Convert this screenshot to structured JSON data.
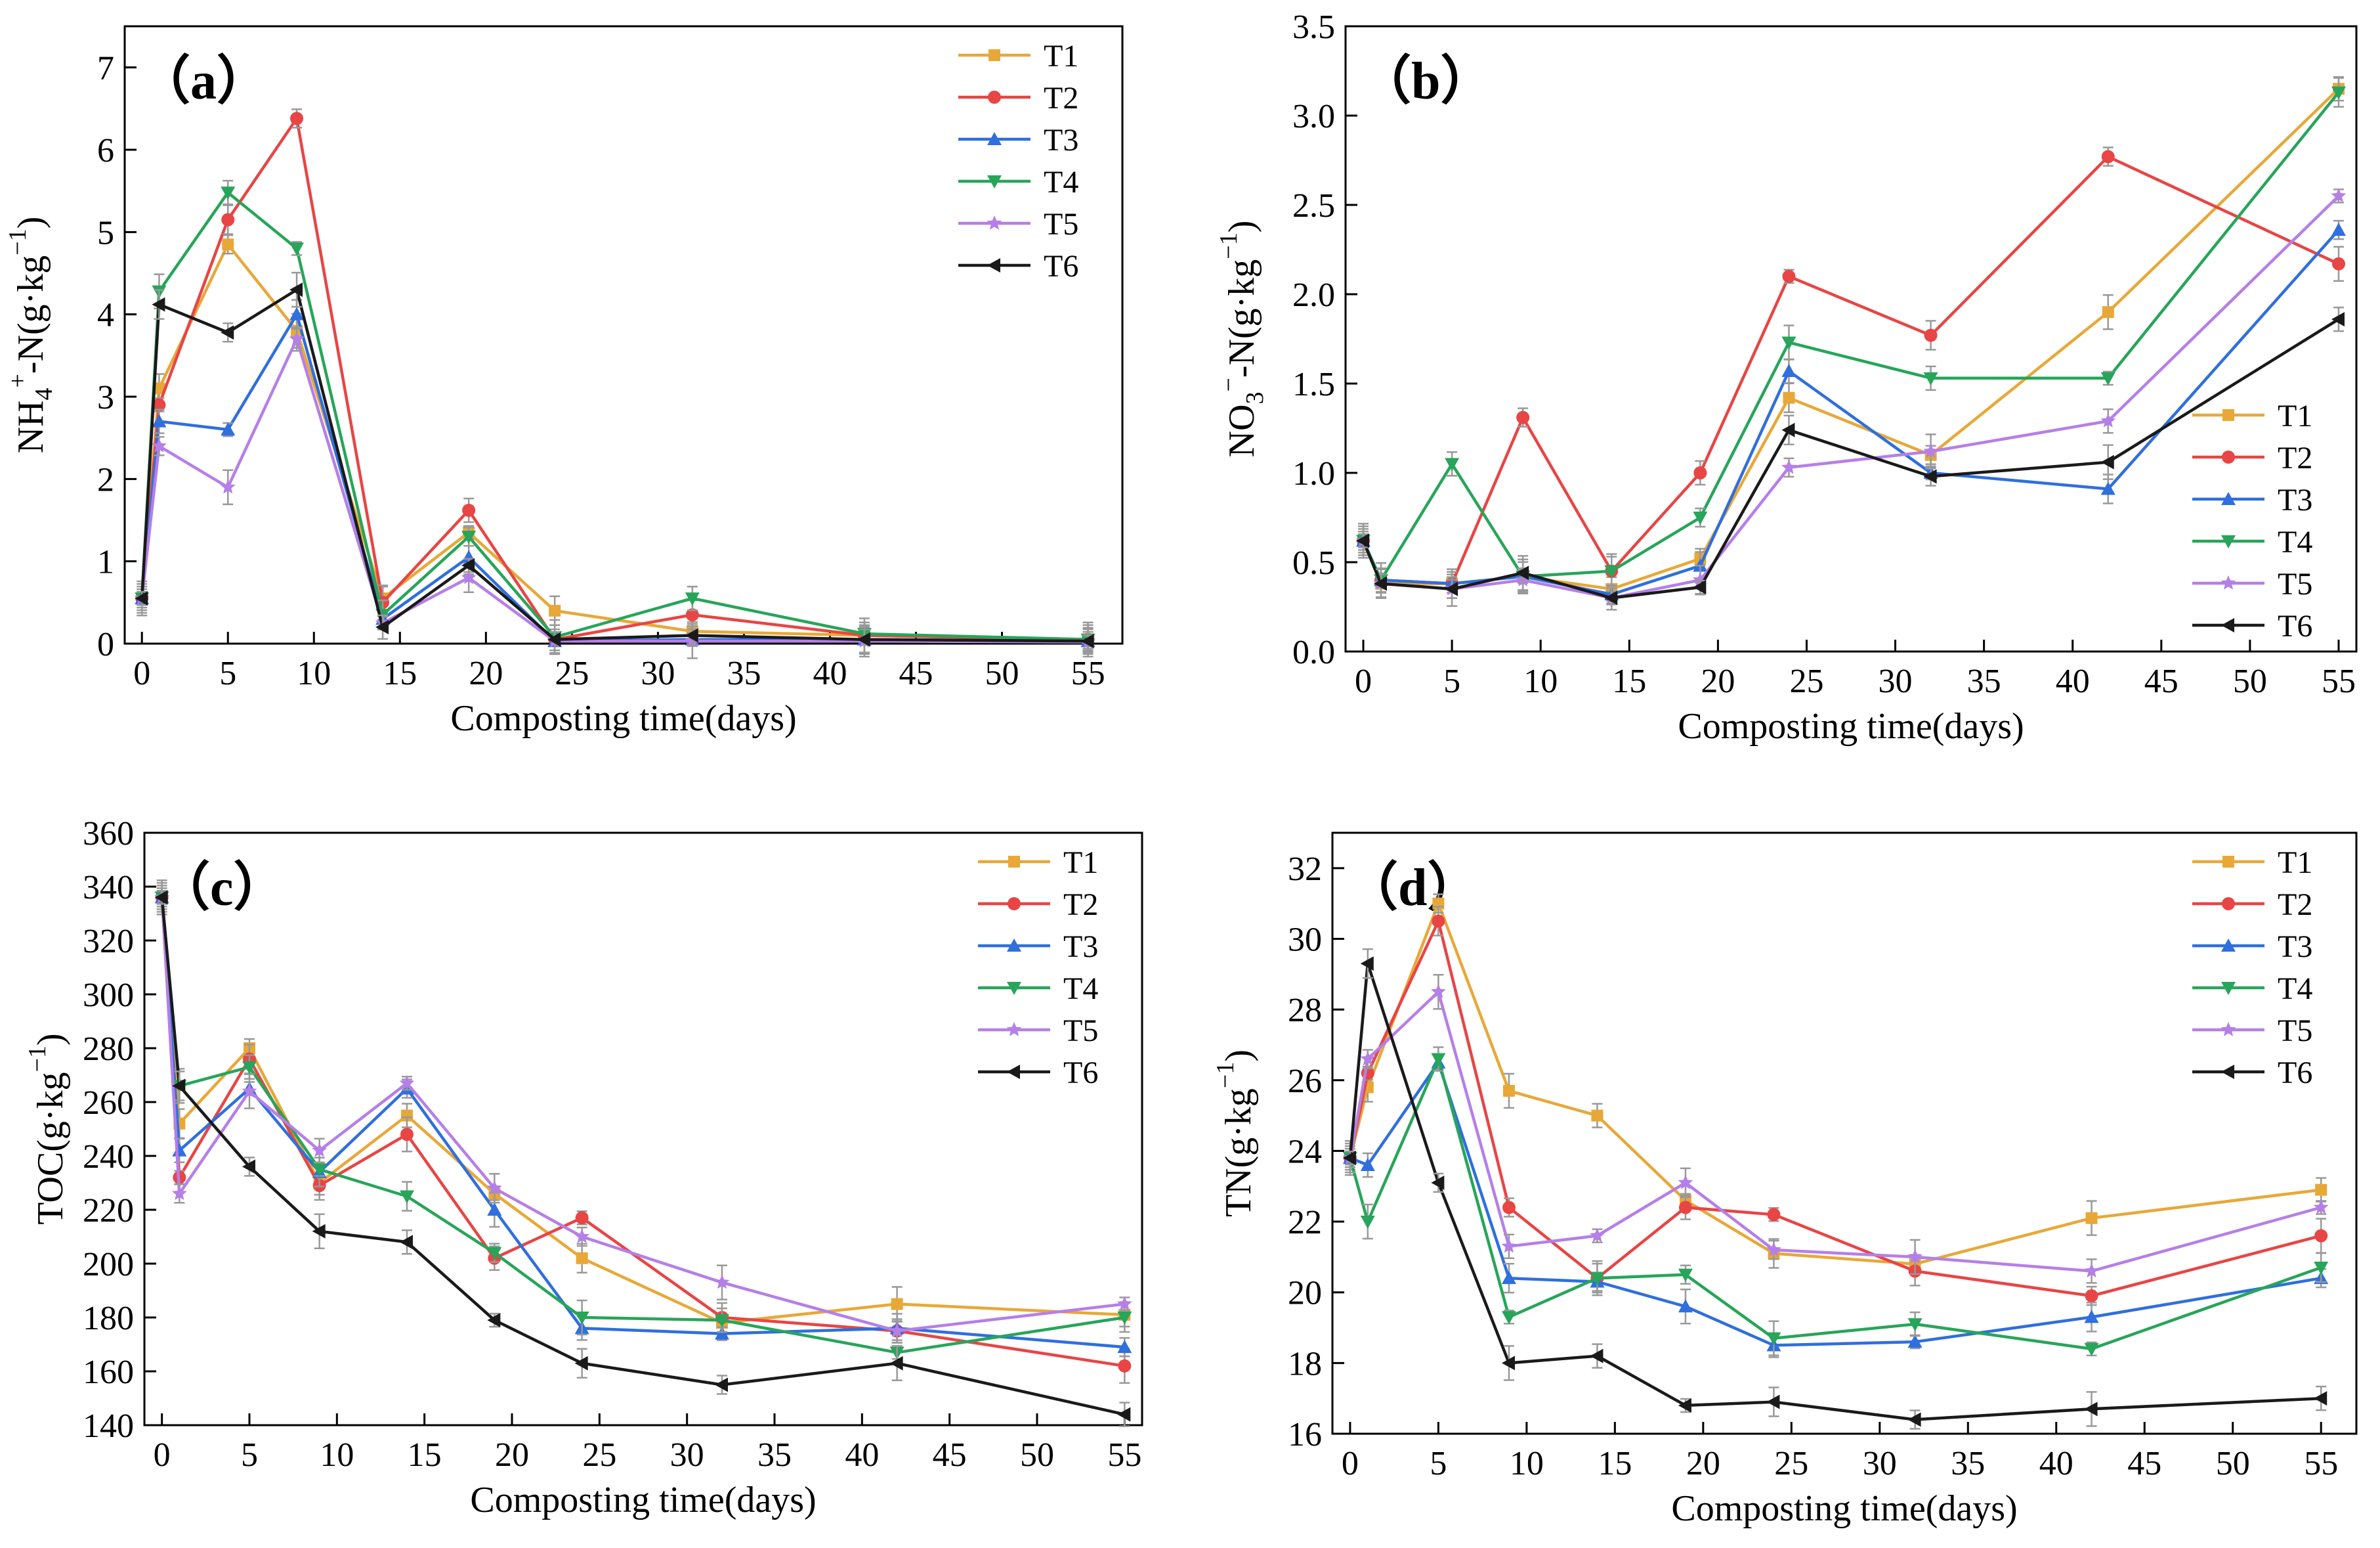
{
  "colors": {
    "T1": "#e8a838",
    "T2": "#e84545",
    "T3": "#2f6fde",
    "T4": "#27a55a",
    "T5": "#b57fe8",
    "T6": "#1a1a1a"
  },
  "legend_labels": [
    "T1",
    "T2",
    "T3",
    "T4",
    "T5",
    "T6"
  ],
  "chart_data": [
    {
      "panel": "a",
      "panel_label": "（a）",
      "type": "line",
      "ylabel_main": "NH",
      "ylabel_sub": "4",
      "ylabel_sup": "+",
      "ylabel_rest": "-N(g·kg",
      "ylabel_exp": "−1",
      "ylabel_close": ")",
      "xlabel": "Composting time(days)",
      "xlim": [
        -1,
        57
      ],
      "ylim": [
        0,
        7.5
      ],
      "xticks": [
        0,
        5,
        10,
        15,
        20,
        25,
        30,
        35,
        40,
        45,
        50,
        55
      ],
      "yticks": [
        0,
        1,
        2,
        3,
        4,
        5,
        6,
        7
      ],
      "legend_position": "top-right",
      "x": [
        0,
        1,
        5,
        9,
        14,
        19,
        24,
        32,
        42,
        55
      ],
      "series": [
        {
          "name": "T1",
          "values": [
            0.55,
            3.1,
            4.85,
            3.8,
            0.55,
            1.35,
            0.4,
            0.15,
            0.1,
            0.05
          ]
        },
        {
          "name": "T2",
          "values": [
            0.55,
            2.9,
            5.15,
            6.38,
            0.5,
            1.62,
            0.05,
            0.35,
            0.1,
            0.05
          ]
        },
        {
          "name": "T3",
          "values": [
            0.55,
            2.7,
            2.6,
            4.0,
            0.3,
            1.05,
            0.03,
            0.05,
            0.05,
            0.03
          ]
        },
        {
          "name": "T4",
          "values": [
            0.55,
            4.28,
            5.48,
            4.8,
            0.35,
            1.3,
            0.08,
            0.55,
            0.12,
            0.05
          ]
        },
        {
          "name": "T5",
          "values": [
            0.55,
            2.4,
            1.9,
            3.7,
            0.25,
            0.8,
            0.03,
            0.03,
            0.03,
            0.02
          ]
        },
        {
          "name": "T6",
          "values": [
            0.55,
            4.12,
            3.78,
            4.3,
            0.2,
            0.95,
            0.05,
            0.1,
            0.05,
            0.03
          ]
        }
      ]
    },
    {
      "panel": "b",
      "panel_label": "（b）",
      "type": "line",
      "ylabel_main": "NO",
      "ylabel_sub": "3",
      "ylabel_sup": "−",
      "ylabel_rest": "-N(g·kg",
      "ylabel_exp": "−1",
      "ylabel_close": ")",
      "xlabel": "Composting time(days)",
      "xlim": [
        -1,
        56
      ],
      "ylim": [
        0,
        3.5
      ],
      "xticks": [
        0,
        5,
        10,
        15,
        20,
        25,
        30,
        35,
        40,
        45,
        50,
        55
      ],
      "yticks": [
        0.0,
        0.5,
        1.0,
        1.5,
        2.0,
        2.5,
        3.0,
        3.5
      ],
      "legend_position": "bottom-right",
      "x": [
        0,
        1,
        5,
        9,
        14,
        19,
        24,
        32,
        42,
        55
      ],
      "series": [
        {
          "name": "T1",
          "values": [
            0.62,
            0.38,
            0.38,
            0.42,
            0.35,
            0.52,
            1.42,
            1.1,
            1.9,
            3.15
          ]
        },
        {
          "name": "T2",
          "values": [
            0.62,
            0.4,
            0.38,
            1.31,
            0.45,
            1.0,
            2.1,
            1.77,
            2.77,
            2.17
          ]
        },
        {
          "name": "T3",
          "values": [
            0.62,
            0.4,
            0.38,
            0.42,
            0.32,
            0.48,
            1.57,
            1.0,
            0.91,
            2.36
          ]
        },
        {
          "name": "T4",
          "values": [
            0.62,
            0.4,
            1.05,
            0.42,
            0.45,
            0.75,
            1.73,
            1.53,
            1.53,
            3.13
          ]
        },
        {
          "name": "T5",
          "values": [
            0.62,
            0.38,
            0.35,
            0.4,
            0.3,
            0.4,
            1.03,
            1.12,
            1.29,
            2.55
          ]
        },
        {
          "name": "T6",
          "values": [
            0.62,
            0.38,
            0.35,
            0.44,
            0.3,
            0.36,
            1.24,
            0.98,
            1.06,
            1.86
          ]
        }
      ]
    },
    {
      "panel": "c",
      "panel_label": "（c）",
      "type": "line",
      "ylabel_main": "TOC(g·kg",
      "ylabel_sub": "",
      "ylabel_sup": "",
      "ylabel_rest": "",
      "ylabel_exp": "−1",
      "ylabel_close": ")",
      "xlabel": "Composting time(days)",
      "xlim": [
        -1,
        56
      ],
      "ylim": [
        140,
        360
      ],
      "xticks": [
        0,
        5,
        10,
        15,
        20,
        25,
        30,
        35,
        40,
        45,
        50,
        55
      ],
      "yticks": [
        140,
        160,
        180,
        200,
        220,
        240,
        260,
        280,
        300,
        320,
        340,
        360
      ],
      "legend_position": "top-right",
      "x": [
        0,
        1,
        5,
        9,
        14,
        19,
        24,
        32,
        42,
        55
      ],
      "series": [
        {
          "name": "T1",
          "values": [
            336,
            252,
            280,
            230,
            255,
            226,
            202,
            178,
            185,
            181
          ]
        },
        {
          "name": "T2",
          "values": [
            336,
            232,
            276,
            229,
            248,
            202,
            217,
            180,
            175,
            162
          ]
        },
        {
          "name": "T3",
          "values": [
            336,
            242,
            265,
            234,
            265,
            220,
            176,
            174,
            176,
            169
          ]
        },
        {
          "name": "T4",
          "values": [
            336,
            266,
            273,
            235,
            225,
            204,
            180,
            179,
            167,
            180
          ]
        },
        {
          "name": "T5",
          "values": [
            336,
            226,
            264,
            242,
            267,
            228,
            210,
            193,
            175,
            185
          ]
        },
        {
          "name": "T6",
          "values": [
            336,
            266,
            236,
            212,
            208,
            179,
            163,
            155,
            163,
            144
          ]
        }
      ]
    },
    {
      "panel": "d",
      "panel_label": "（d）",
      "type": "line",
      "ylabel_main": "TN(g·kg",
      "ylabel_sub": "",
      "ylabel_sup": "",
      "ylabel_rest": "",
      "ylabel_exp": "−1",
      "ylabel_close": ")",
      "xlabel": "Composting time(days)",
      "xlim": [
        -1,
        57
      ],
      "ylim": [
        16,
        33
      ],
      "xticks": [
        0,
        5,
        10,
        15,
        20,
        25,
        30,
        35,
        40,
        45,
        50,
        55
      ],
      "yticks": [
        16,
        18,
        20,
        22,
        24,
        26,
        28,
        30,
        32
      ],
      "legend_position": "top-right",
      "x": [
        0,
        1,
        5,
        9,
        14,
        19,
        24,
        32,
        42,
        55
      ],
      "series": [
        {
          "name": "T1",
          "values": [
            23.8,
            25.8,
            31.0,
            25.7,
            25.0,
            22.6,
            21.1,
            20.8,
            22.1,
            22.9
          ]
        },
        {
          "name": "T2",
          "values": [
            23.8,
            26.2,
            30.5,
            22.4,
            20.4,
            22.4,
            22.2,
            20.6,
            19.9,
            21.6
          ]
        },
        {
          "name": "T3",
          "values": [
            23.8,
            23.6,
            26.5,
            20.4,
            20.3,
            19.6,
            18.5,
            18.6,
            19.3,
            20.4
          ]
        },
        {
          "name": "T4",
          "values": [
            23.8,
            22.0,
            26.6,
            19.3,
            20.4,
            20.5,
            18.7,
            19.1,
            18.4,
            20.7
          ]
        },
        {
          "name": "T5",
          "values": [
            23.8,
            26.6,
            28.5,
            21.3,
            21.6,
            23.1,
            21.2,
            21.0,
            20.6,
            22.4
          ]
        },
        {
          "name": "T6",
          "values": [
            23.8,
            29.3,
            23.1,
            18.0,
            18.2,
            16.8,
            16.9,
            16.4,
            16.7,
            17.0
          ]
        }
      ]
    }
  ]
}
